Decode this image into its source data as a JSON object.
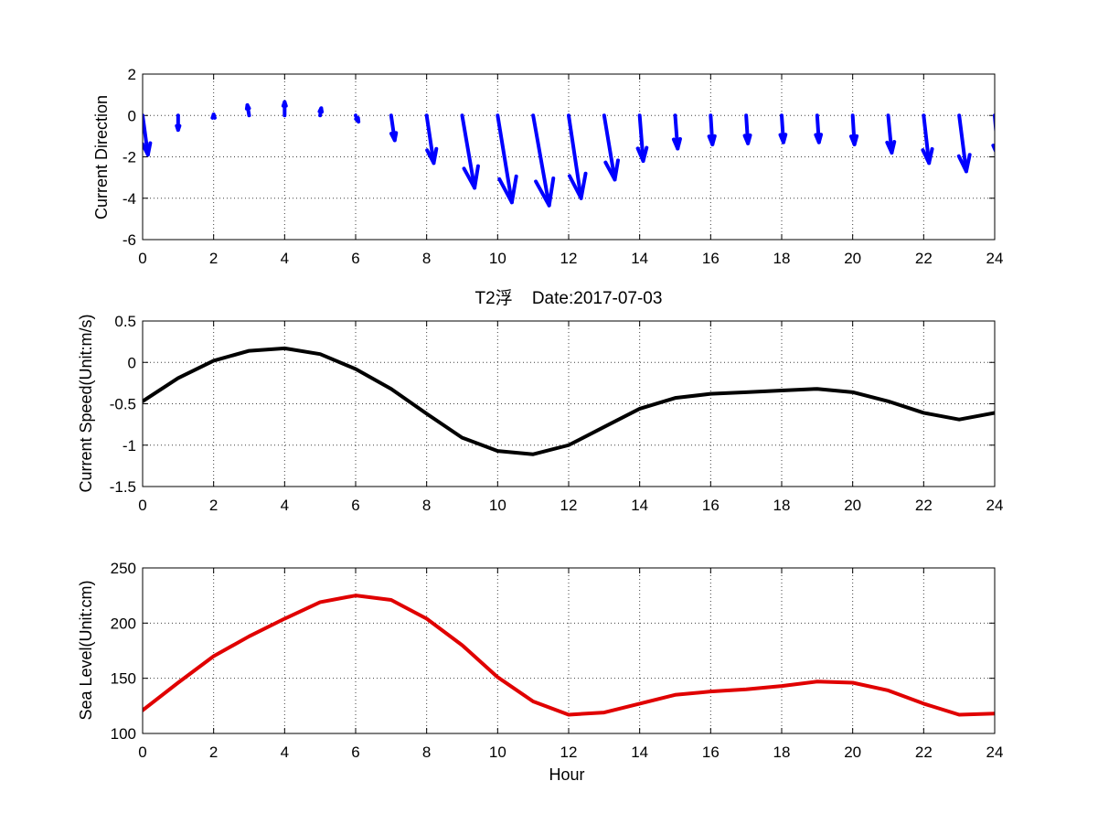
{
  "figure_title": "T2浮    Date:2017-07-03",
  "colors": {
    "title": "#e00000",
    "arrows": "#0000ff",
    "speed_line": "#000000",
    "sea_level_line": "#e00000"
  },
  "chart_data": [
    {
      "type": "quiver",
      "ylabel": "Current Direction",
      "xlabel": "",
      "xlim": [
        0,
        24
      ],
      "ylim": [
        -6,
        2
      ],
      "xticks": [
        0,
        2,
        4,
        6,
        8,
        10,
        12,
        14,
        16,
        18,
        20,
        22,
        24
      ],
      "yticks": [
        2,
        0,
        -2,
        -4,
        -6
      ],
      "grid": true,
      "series": [
        {
          "color": "#0000ff",
          "x": [
            0,
            1,
            2,
            3,
            4,
            5,
            6,
            7,
            8,
            9,
            10,
            11,
            12,
            13,
            14,
            15,
            16,
            17,
            18,
            19,
            20,
            21,
            22,
            23,
            24
          ],
          "u": [
            0.15,
            0.0,
            0.0,
            -0.05,
            0.0,
            0.03,
            0.08,
            0.1,
            0.2,
            0.35,
            0.4,
            0.45,
            0.35,
            0.3,
            0.1,
            0.07,
            0.05,
            0.05,
            0.05,
            0.05,
            0.05,
            0.1,
            0.15,
            0.2,
            0.1
          ],
          "v": [
            -1.9,
            -0.7,
            0.05,
            0.5,
            0.65,
            0.35,
            -0.3,
            -1.2,
            -2.3,
            -3.5,
            -4.2,
            -4.35,
            -4.0,
            -3.1,
            -2.2,
            -1.6,
            -1.4,
            -1.35,
            -1.3,
            -1.3,
            -1.4,
            -1.8,
            -2.3,
            -2.7,
            -2.0
          ]
        }
      ]
    },
    {
      "type": "line",
      "title": "T2浮    Date:2017-07-03",
      "ylabel": "Current Speed(Unit:m/s)",
      "xlabel": "",
      "xlim": [
        0,
        24
      ],
      "ylim": [
        -1.5,
        0.5
      ],
      "xticks": [
        0,
        2,
        4,
        6,
        8,
        10,
        12,
        14,
        16,
        18,
        20,
        22,
        24
      ],
      "yticks": [
        0.5,
        0,
        -0.5,
        -1,
        -1.5
      ],
      "grid": true,
      "series": [
        {
          "color": "#000000",
          "x": [
            0,
            1,
            2,
            3,
            4,
            5,
            6,
            7,
            8,
            9,
            10,
            11,
            12,
            13,
            14,
            15,
            16,
            17,
            18,
            19,
            20,
            21,
            22,
            23,
            24
          ],
          "values": [
            -0.47,
            -0.19,
            0.02,
            0.14,
            0.17,
            0.1,
            -0.08,
            -0.32,
            -0.62,
            -0.91,
            -1.07,
            -1.11,
            -1.0,
            -0.78,
            -0.56,
            -0.43,
            -0.38,
            -0.36,
            -0.34,
            -0.32,
            -0.36,
            -0.47,
            -0.61,
            -0.69,
            -0.61
          ]
        }
      ]
    },
    {
      "type": "line",
      "ylabel": "Sea Level(Unit:cm)",
      "xlabel": "Hour",
      "xlim": [
        0,
        24
      ],
      "ylim": [
        100,
        250
      ],
      "xticks": [
        0,
        2,
        4,
        6,
        8,
        10,
        12,
        14,
        16,
        18,
        20,
        22,
        24
      ],
      "yticks": [
        250,
        200,
        150,
        100
      ],
      "grid": true,
      "series": [
        {
          "color": "#e00000",
          "x": [
            0,
            1,
            2,
            3,
            4,
            5,
            6,
            7,
            8,
            9,
            10,
            11,
            12,
            13,
            14,
            15,
            16,
            17,
            18,
            19,
            20,
            21,
            22,
            23,
            24
          ],
          "values": [
            121,
            146,
            170,
            188,
            204,
            219,
            225,
            221,
            204,
            180,
            151,
            129,
            117,
            119,
            127,
            135,
            138,
            140,
            143,
            147,
            146,
            139,
            127,
            117,
            118
          ]
        }
      ]
    }
  ]
}
